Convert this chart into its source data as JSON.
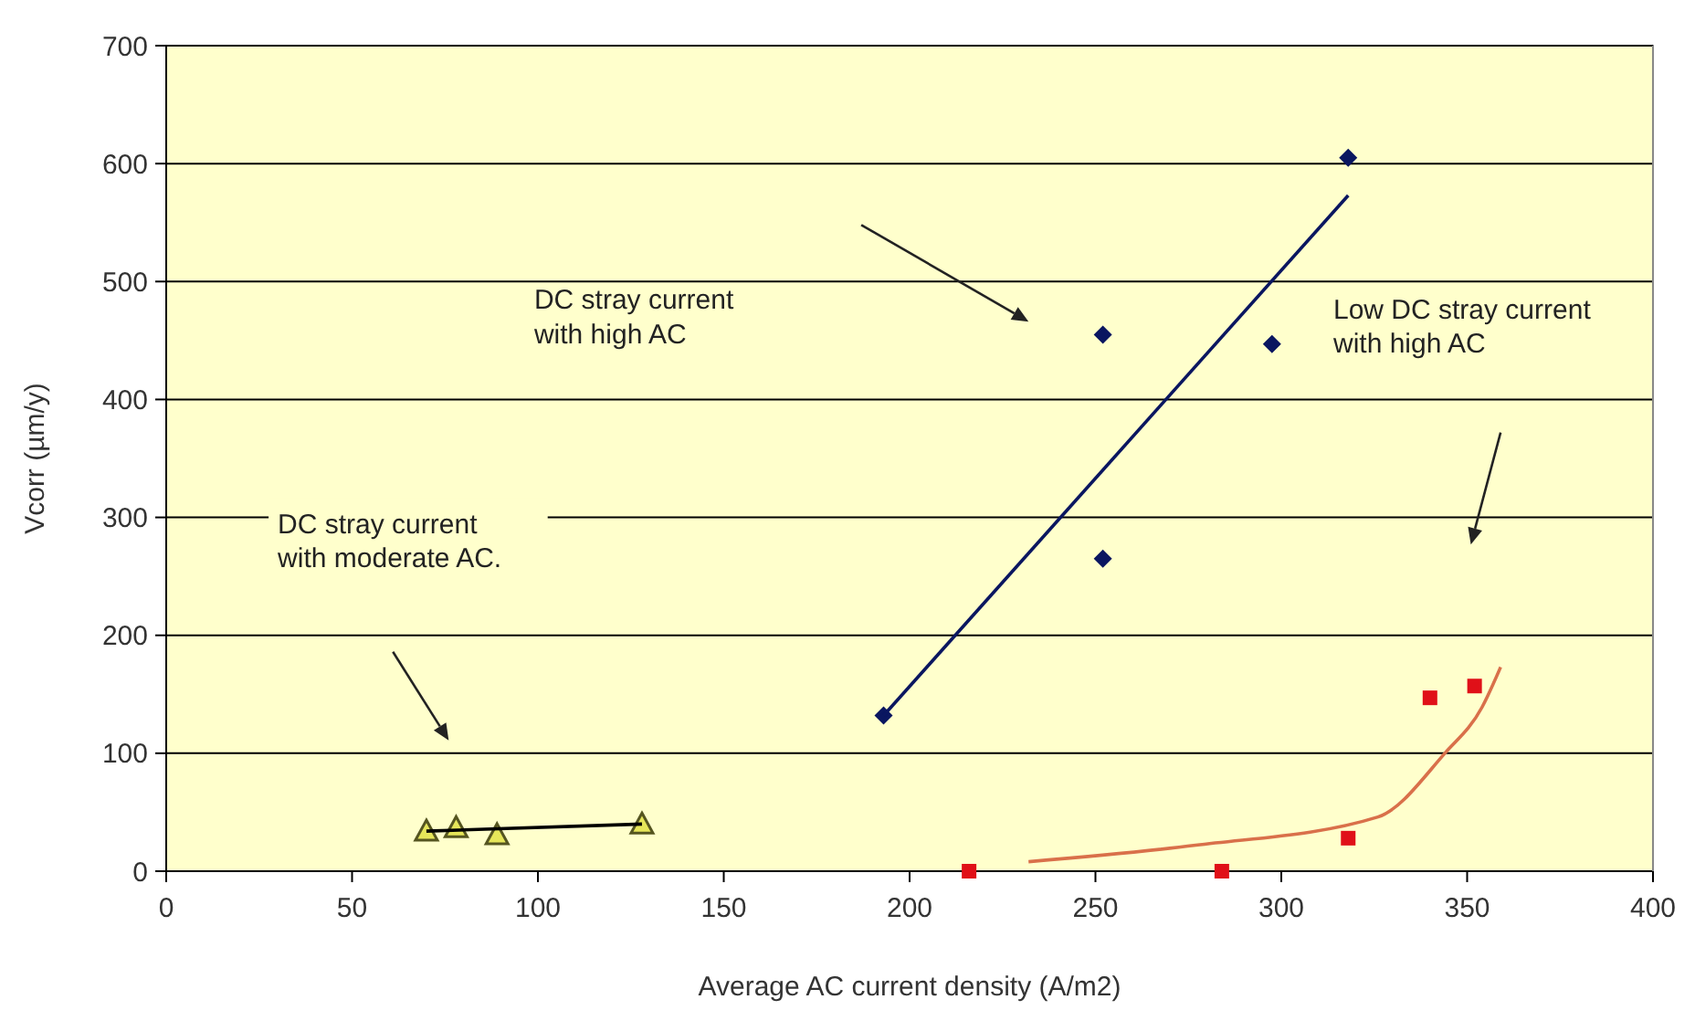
{
  "chart_data": {
    "type": "scatter",
    "xlabel": "Average AC current density (A/m2)",
    "ylabel": "Vcorr (µm/y)",
    "xlim": [
      0,
      400
    ],
    "ylim": [
      0,
      700
    ],
    "xticks": [
      0,
      50,
      100,
      150,
      200,
      250,
      300,
      350,
      400
    ],
    "yticks": [
      0,
      100,
      200,
      300,
      400,
      500,
      600,
      700
    ],
    "grid": "y",
    "series": [
      {
        "marker": "diamond",
        "color": "#0a1660",
        "x": [
          193,
          252,
          252,
          297.5,
          318
        ],
        "values": [
          132,
          455,
          265,
          447,
          605
        ]
      },
      {
        "type": "line",
        "marker": "none",
        "color": "#0a1660",
        "x": [
          193,
          318
        ],
        "values": [
          132,
          573
        ]
      },
      {
        "marker": "square",
        "color": "#e01018",
        "x": [
          216,
          284,
          318,
          340,
          352
        ],
        "values": [
          0,
          0,
          28,
          147,
          157
        ]
      },
      {
        "type": "line",
        "marker": "none",
        "color": "#d9704a",
        "x": [
          232,
          277,
          326,
          344,
          354,
          359
        ],
        "values": [
          8,
          22,
          46,
          100,
          139,
          173
        ]
      },
      {
        "marker": "triangle",
        "color": "#e6e65a",
        "x": [
          70,
          78,
          89,
          128
        ],
        "values": [
          34,
          37,
          31,
          40
        ]
      },
      {
        "type": "line",
        "marker": "none",
        "color": "#000000",
        "x": [
          70,
          128
        ],
        "values": [
          34,
          40
        ]
      }
    ],
    "annotations": [
      "DC stray current\nwith high AC",
      "Low DC stray current\nwith high AC",
      "DC stray current\nwith moderate AC."
    ]
  }
}
